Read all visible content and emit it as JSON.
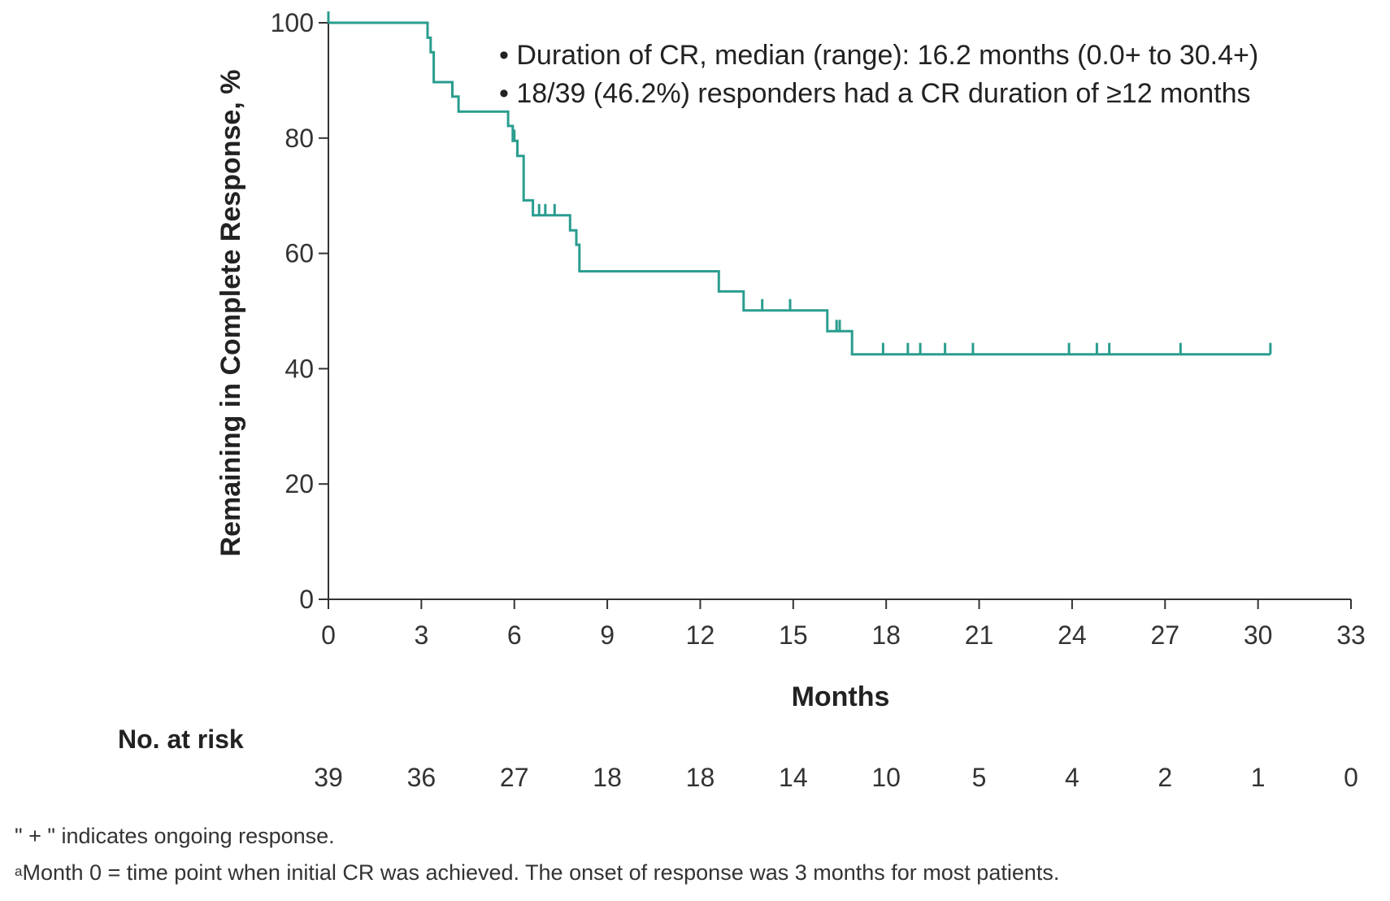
{
  "chart_data": {
    "type": "line",
    "title": "",
    "xlabel": "Months",
    "ylabel": "Remaining in Complete Response, %",
    "xlim": [
      0,
      33
    ],
    "ylim": [
      0,
      100
    ],
    "x_ticks": [
      0,
      3,
      6,
      9,
      12,
      15,
      18,
      21,
      24,
      27,
      30,
      33
    ],
    "y_ticks": [
      0,
      20,
      40,
      60,
      80,
      100
    ],
    "grid": false,
    "series": [
      {
        "name": "",
        "color": "#2a9d8f",
        "step_points": [
          [
            0,
            100
          ],
          [
            3.2,
            100
          ],
          [
            3.2,
            97.4
          ],
          [
            3.3,
            97.4
          ],
          [
            3.3,
            94.9
          ],
          [
            3.4,
            94.9
          ],
          [
            3.4,
            89.7
          ],
          [
            4.0,
            89.7
          ],
          [
            4.0,
            87.2
          ],
          [
            4.2,
            87.2
          ],
          [
            4.2,
            84.6
          ],
          [
            5.8,
            84.6
          ],
          [
            5.8,
            82.1
          ],
          [
            5.95,
            82.1
          ],
          [
            5.95,
            79.5
          ],
          [
            6.1,
            79.5
          ],
          [
            6.1,
            76.9
          ],
          [
            6.3,
            76.9
          ],
          [
            6.3,
            69.2
          ],
          [
            6.6,
            69.2
          ],
          [
            6.6,
            66.6
          ],
          [
            7.8,
            66.6
          ],
          [
            7.8,
            64.0
          ],
          [
            8.0,
            64.0
          ],
          [
            8.0,
            61.5
          ],
          [
            8.1,
            61.5
          ],
          [
            8.1,
            56.9
          ],
          [
            12.6,
            56.9
          ],
          [
            12.6,
            53.4
          ],
          [
            13.4,
            53.4
          ],
          [
            13.4,
            50.1
          ],
          [
            16.1,
            50.1
          ],
          [
            16.1,
            46.5
          ],
          [
            16.9,
            46.5
          ],
          [
            16.9,
            42.5
          ],
          [
            30.4,
            42.5
          ]
        ],
        "censor_marks": [
          [
            0,
            100
          ],
          [
            6.0,
            79.5
          ],
          [
            6.8,
            66.6
          ],
          [
            7.0,
            66.6
          ],
          [
            7.3,
            66.6
          ],
          [
            14.0,
            50.1
          ],
          [
            14.9,
            50.1
          ],
          [
            16.4,
            46.5
          ],
          [
            16.5,
            46.5
          ],
          [
            17.9,
            42.5
          ],
          [
            18.7,
            42.5
          ],
          [
            19.1,
            42.5
          ],
          [
            19.9,
            42.5
          ],
          [
            20.8,
            42.5
          ],
          [
            23.9,
            42.5
          ],
          [
            24.8,
            42.5
          ],
          [
            25.2,
            42.5
          ],
          [
            27.5,
            42.5
          ],
          [
            30.4,
            42.5
          ]
        ]
      }
    ],
    "annotations": [
      "• Duration of CR, median (range): 16.2 months (0.0+ to 30.4+)",
      "• 18/39 (46.2%) responders had a CR duration of ≥12 months"
    ],
    "risk_table": {
      "title": "No. at risk",
      "values": [
        "39",
        "36",
        "27",
        "18",
        "18",
        "14",
        "10",
        "5",
        "4",
        "2",
        "1",
        "0"
      ]
    }
  },
  "footnotes": {
    "line1": "\" + \" indicates ongoing response.",
    "line2_sup": "a",
    "line2": "Month 0 = time point when initial CR was achieved. The onset of response was 3 months for most patients."
  }
}
